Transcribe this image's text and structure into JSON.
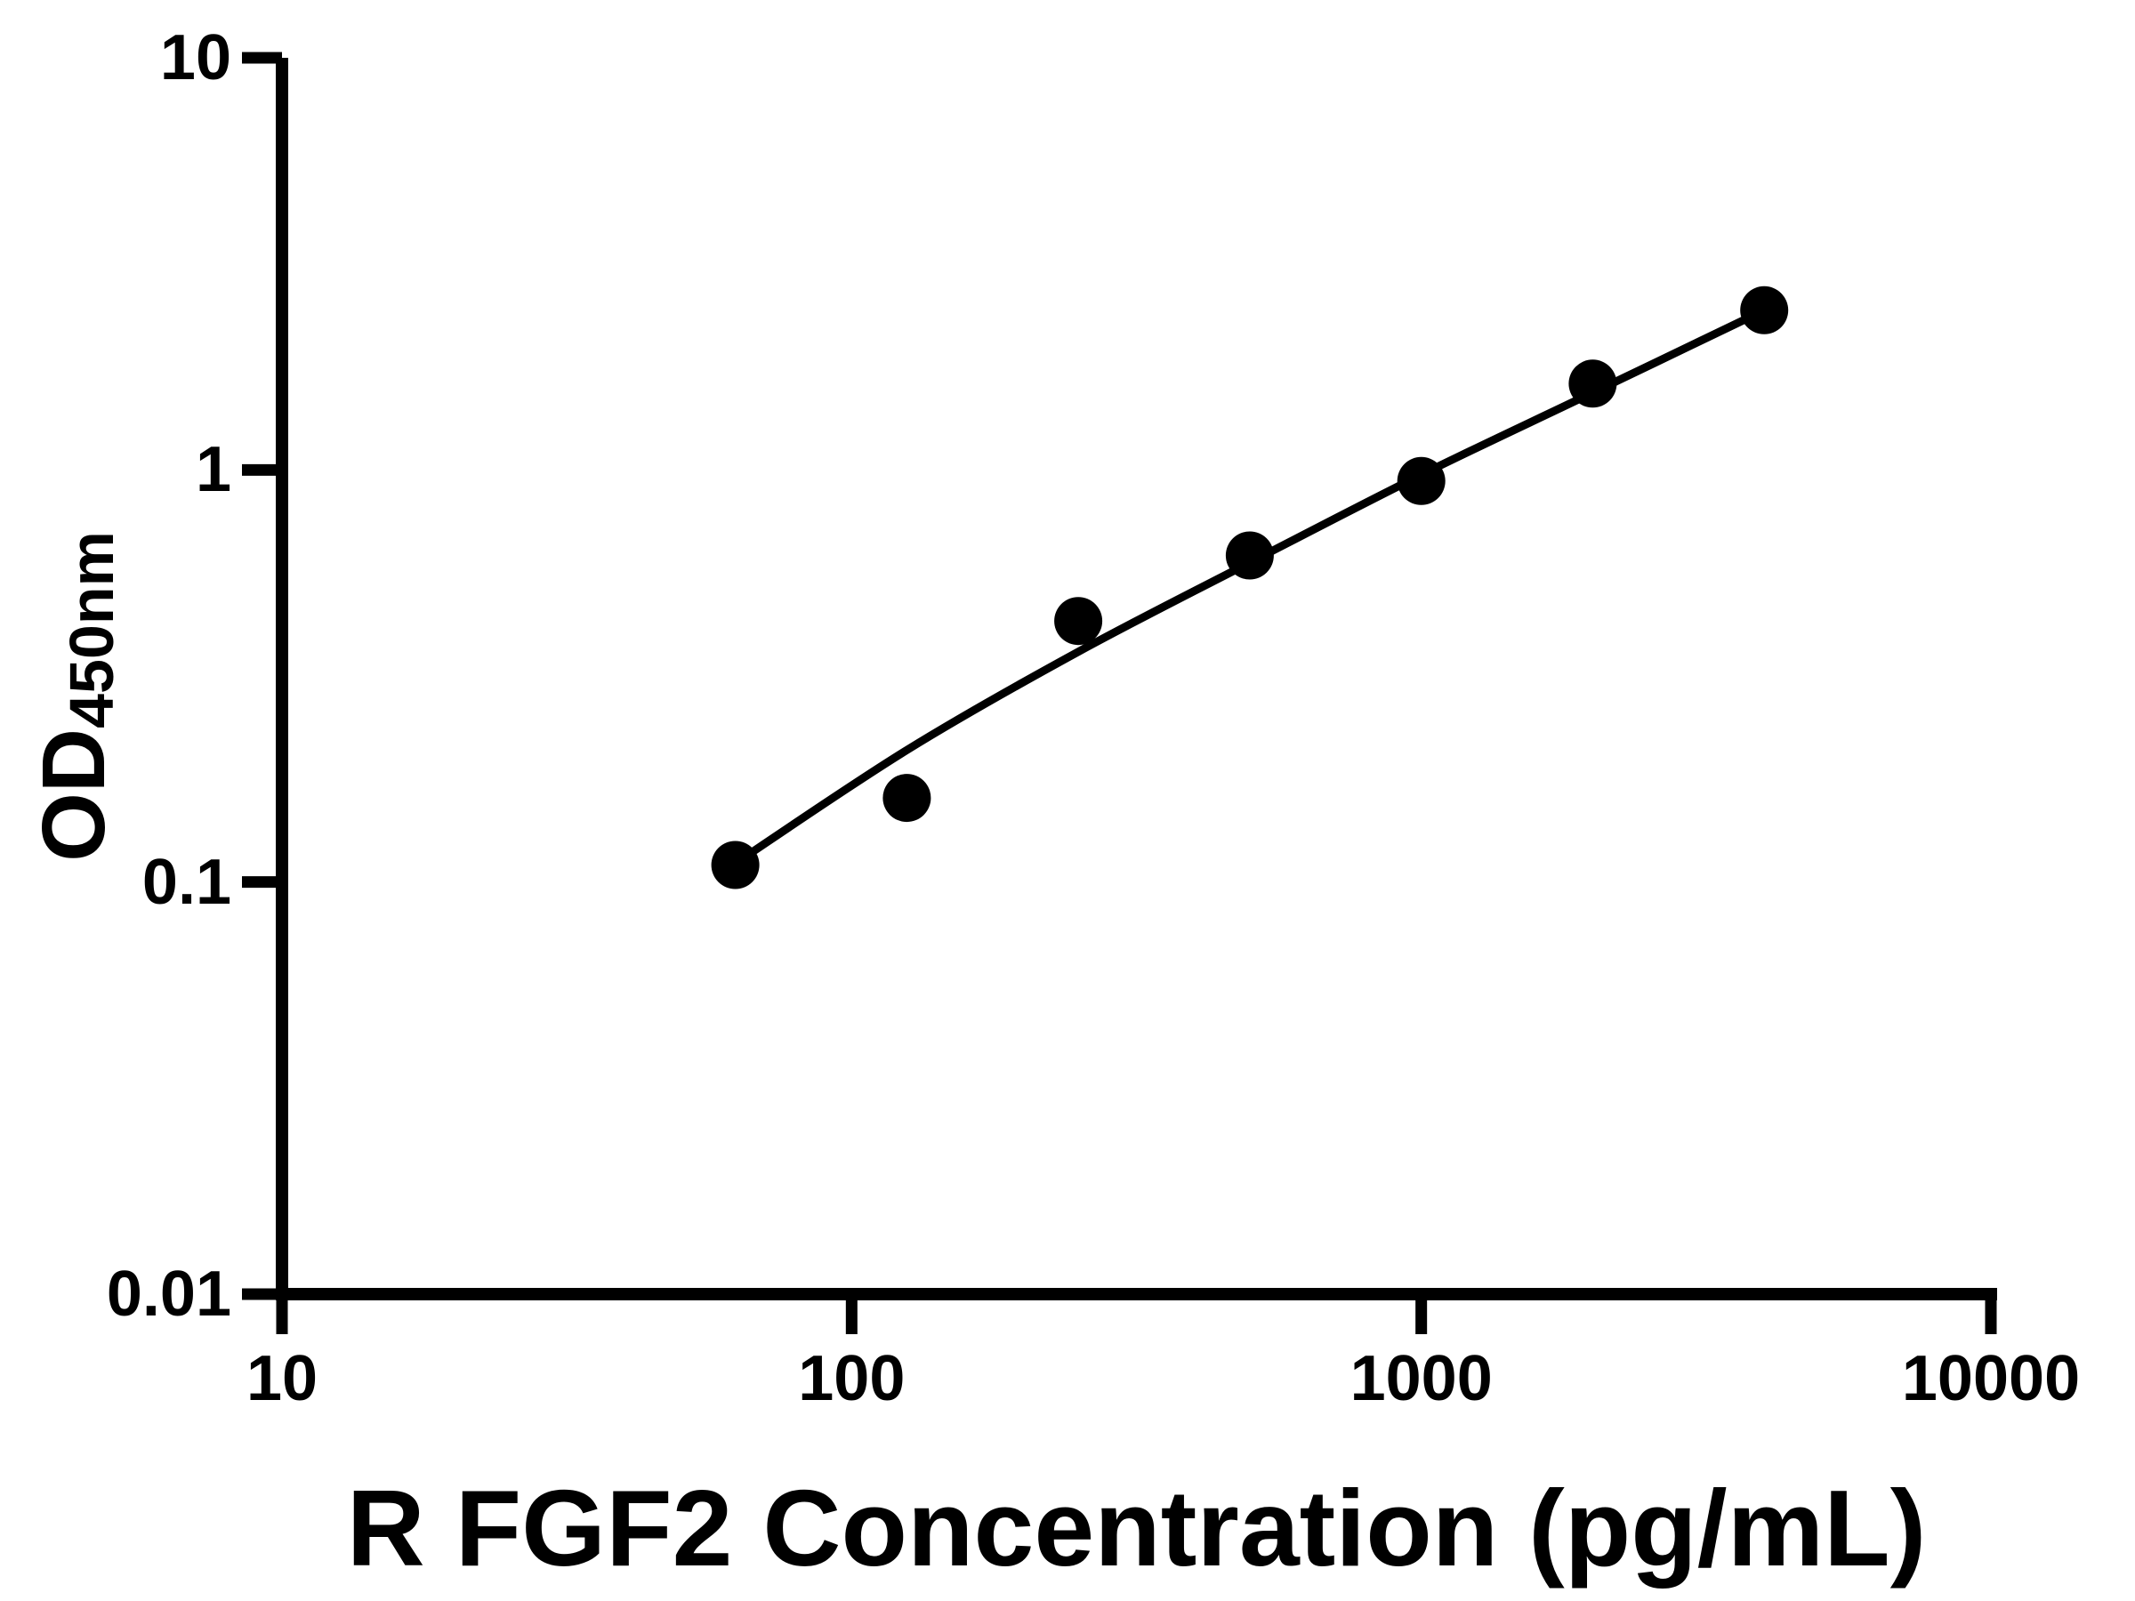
{
  "chart_data": {
    "type": "scatter",
    "title": "",
    "xlabel": "R FGF2 Concentration (pg/mL)",
    "ylabel_main": "OD",
    "ylabel_sub": "450nm",
    "x_scale": "log",
    "y_scale": "log",
    "xlim": [
      10,
      10000
    ],
    "ylim": [
      0.01,
      10
    ],
    "grid": false,
    "legend_position": "none",
    "background_color": "#ffffff",
    "foreground_color": "#000000",
    "x_ticks": [
      {
        "value": 10,
        "label": "10"
      },
      {
        "value": 100,
        "label": "100"
      },
      {
        "value": 1000,
        "label": "1000"
      },
      {
        "value": 10000,
        "label": "10000"
      }
    ],
    "y_ticks": [
      {
        "value": 10,
        "label": "10"
      },
      {
        "value": 1,
        "label": "1"
      },
      {
        "value": 0.1,
        "label": "0.1"
      },
      {
        "value": 0.01,
        "label": "0.01"
      }
    ],
    "series": [
      {
        "name": "standard-points",
        "type": "scatter",
        "marker": "filled-circle",
        "color": "#000000",
        "x": [
          62.5,
          125,
          250,
          500,
          1000,
          2000,
          4000
        ],
        "y": [
          0.11,
          0.16,
          0.43,
          0.62,
          0.94,
          1.62,
          2.44
        ]
      },
      {
        "name": "fit-curve",
        "type": "line",
        "color": "#000000",
        "x": [
          62.5,
          125,
          250,
          500,
          1000,
          2000,
          4000
        ],
        "y": [
          0.111,
          0.209,
          0.362,
          0.596,
          0.973,
          1.54,
          2.44
        ]
      }
    ]
  }
}
